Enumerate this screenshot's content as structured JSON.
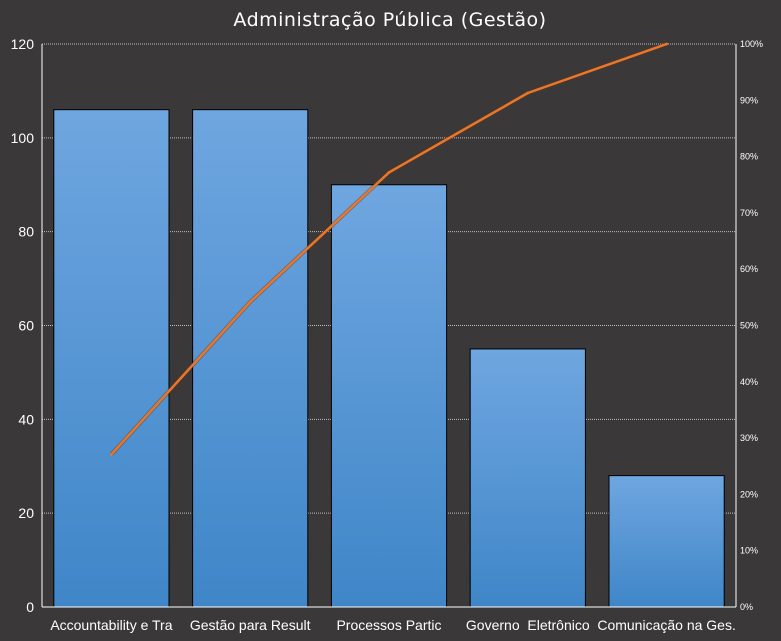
{
  "chart_data": {
    "type": "bar",
    "title": "Administração Pública (Gestão)",
    "categories": [
      "Accountability e Tra",
      "Gestão para Result",
      "Processos Partic",
      "Governo  Eletrônico",
      "Comunicação na Ges."
    ],
    "series": [
      {
        "type": "bar",
        "values": [
          106,
          106,
          90,
          55,
          28
        ]
      },
      {
        "type": "line",
        "axis": "right",
        "values": [
          27.1,
          54.2,
          77.2,
          91.3,
          100
        ]
      }
    ],
    "ylim": [
      0,
      120
    ],
    "yticks": [
      "0",
      "20",
      "40",
      "60",
      "80",
      "100",
      "120"
    ],
    "y2lim": [
      0,
      100
    ],
    "y2ticks": [
      "0%",
      "10%",
      "20%",
      "30%",
      "40%",
      "50%",
      "60%",
      "70%",
      "80%",
      "90%",
      "100%"
    ],
    "grid": true,
    "legend": "none",
    "colors": {
      "background": "#3a3838",
      "bar_top": "#6fa6e0",
      "bar_bottom": "#3f86c8",
      "bar_edge": "#000000",
      "line": "#e8772e",
      "grid": "#bfbfbf",
      "axis": "#ffffff",
      "text": "#ffffff"
    }
  }
}
